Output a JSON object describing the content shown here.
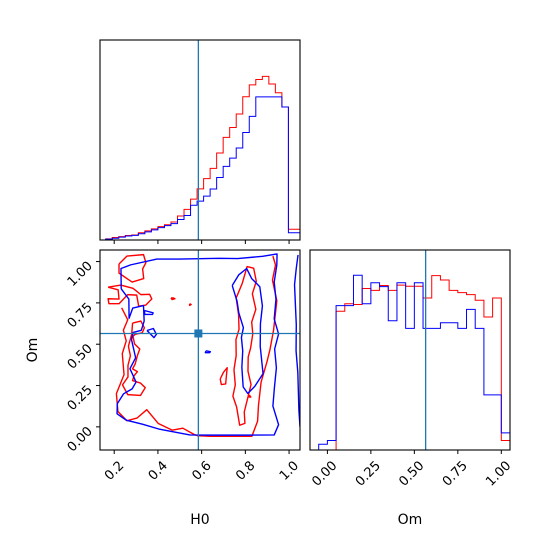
{
  "chart_data": {
    "type": "corner",
    "parameters": [
      "H0",
      "Om"
    ],
    "truth": {
      "H0": 0.585,
      "Om": 0.565
    },
    "colors": {
      "red": "#ff0000",
      "blue": "#0000ff",
      "truth": "#1f77b4"
    },
    "xlim_H0": [
      0.135,
      1.05
    ],
    "ylim_Om": [
      -0.14,
      1.07
    ],
    "hist_xlim_Om": [
      -0.1,
      1.05
    ],
    "H0_ticks": [
      "0.2",
      "0.4",
      "0.6",
      "0.8",
      "1.0"
    ],
    "Om_ticks": [
      "0.00",
      "0.25",
      "0.50",
      "0.75",
      "1.00"
    ],
    "hist_H0": {
      "bin_edges": [
        0.1612,
        0.191,
        0.2209,
        0.2507,
        0.2806,
        0.3104,
        0.3403,
        0.3701,
        0.4,
        0.4299,
        0.4597,
        0.4896,
        0.5194,
        0.5493,
        0.5791,
        0.609,
        0.6388,
        0.6687,
        0.6985,
        0.7284,
        0.7582,
        0.7881,
        0.8179,
        0.8478,
        0.8776,
        0.9075,
        0.9373,
        0.9672,
        0.997,
        1.0269,
        1.0567
      ],
      "series": [
        {
          "color": "red",
          "values": [
            0.006,
            0.014,
            0.019,
            0.025,
            0.028,
            0.04,
            0.051,
            0.062,
            0.074,
            0.085,
            0.1,
            0.133,
            0.17,
            0.227,
            0.284,
            0.341,
            0.398,
            0.483,
            0.57,
            0.625,
            0.7,
            0.796,
            0.862,
            0.892,
            0.909,
            0.867,
            0.818,
            0.739,
            0.06,
            0.06
          ]
        },
        {
          "color": "blue",
          "values": [
            0.005,
            0.01,
            0.016,
            0.022,
            0.026,
            0.035,
            0.045,
            0.056,
            0.069,
            0.08,
            0.091,
            0.114,
            0.136,
            0.193,
            0.216,
            0.244,
            0.283,
            0.347,
            0.409,
            0.455,
            0.511,
            0.597,
            0.687,
            0.795,
            0.795,
            0.795,
            0.795,
            0.739,
            0.04,
            0.04
          ]
        }
      ]
    },
    "hist_Om": {
      "bin_edges": [
        -0.05,
        0.0,
        0.05,
        0.1,
        0.15,
        0.2,
        0.25,
        0.3,
        0.35,
        0.4,
        0.45,
        0.5,
        0.55,
        0.6,
        0.65,
        0.7,
        0.75,
        0.8,
        0.85,
        0.9,
        0.95,
        1.0,
        1.05
      ],
      "series": [
        {
          "color": "red",
          "values": [
            0.0,
            0.0,
            0.73,
            0.77,
            0.766,
            0.85,
            0.84,
            0.866,
            0.84,
            0.868,
            0.862,
            0.862,
            0.8,
            0.918,
            0.895,
            0.84,
            0.828,
            0.818,
            0.788,
            0.7,
            0.8,
            0.05
          ]
        },
        {
          "color": "blue",
          "values": [
            0.03,
            0.05,
            0.76,
            0.76,
            0.92,
            0.77,
            0.88,
            0.86,
            0.68,
            0.88,
            0.64,
            0.88,
            0.64,
            0.64,
            0.67,
            0.67,
            0.64,
            0.74,
            0.64,
            0.29,
            0.29,
            0.09
          ]
        }
      ]
    },
    "contours": [
      {
        "color": "red",
        "points": [
          [
            0.222,
            0.985
          ],
          [
            0.258,
            1.033
          ],
          [
            0.334,
            1.042
          ],
          [
            0.345,
            0.993
          ],
          [
            0.33,
            0.955
          ],
          [
            0.335,
            0.897
          ],
          [
            0.282,
            0.876
          ],
          [
            0.222,
            0.93
          ],
          [
            0.222,
            0.985
          ]
        ]
      },
      {
        "color": "red",
        "points": [
          [
            0.172,
            0.845
          ],
          [
            0.218,
            0.829
          ],
          [
            0.222,
            0.773
          ],
          [
            0.172,
            0.775
          ],
          [
            0.176,
            0.745
          ],
          [
            0.222,
            0.745
          ],
          [
            0.262,
            0.8
          ],
          [
            0.303,
            0.797
          ],
          [
            0.312,
            0.73
          ],
          [
            0.345,
            0.737
          ],
          [
            0.372,
            0.774
          ],
          [
            0.362,
            0.802
          ],
          [
            0.322,
            0.8
          ],
          [
            0.286,
            0.838
          ],
          [
            0.23,
            0.858
          ],
          [
            0.172,
            0.845
          ]
        ]
      },
      {
        "color": "red",
        "points": [
          [
            0.234,
            0.72
          ],
          [
            0.262,
            0.648
          ],
          [
            0.242,
            0.585
          ],
          [
            0.255,
            0.52
          ],
          [
            0.237,
            0.443
          ],
          [
            0.245,
            0.316
          ],
          [
            0.21,
            0.201
          ],
          [
            0.217,
            0.093
          ],
          [
            0.258,
            0.037
          ],
          [
            0.304,
            0.053
          ],
          [
            0.349,
            0.104
          ],
          [
            0.402,
            0.02
          ],
          [
            0.465,
            -0.02
          ],
          [
            0.514,
            -0.008
          ],
          [
            0.564,
            -0.045
          ],
          [
            0.58,
            -0.053
          ],
          [
            0.64,
            -0.057
          ],
          [
            0.72,
            -0.057
          ],
          [
            0.83,
            -0.057
          ],
          [
            0.856,
            0.035
          ],
          [
            0.86,
            0.129
          ],
          [
            0.872,
            0.271
          ],
          [
            0.899,
            0.394
          ],
          [
            0.913,
            0.47
          ],
          [
            0.929,
            0.585
          ],
          [
            0.944,
            0.763
          ],
          [
            0.924,
            0.888
          ],
          [
            0.938,
            0.98
          ],
          [
            0.926,
            1.033
          ]
        ]
      },
      {
        "color": "red",
        "points": [
          [
            0.76,
            0.12
          ],
          [
            0.743,
            0.186
          ],
          [
            0.754,
            0.254
          ],
          [
            0.748,
            0.346
          ],
          [
            0.758,
            0.431
          ],
          [
            0.757,
            0.528
          ],
          [
            0.771,
            0.59
          ],
          [
            0.769,
            0.679
          ],
          [
            0.758,
            0.78
          ],
          [
            0.786,
            0.869
          ],
          [
            0.808,
            0.97
          ],
          [
            0.838,
            0.96
          ],
          [
            0.85,
            0.881
          ],
          [
            0.832,
            0.805
          ],
          [
            0.848,
            0.711
          ],
          [
            0.829,
            0.634
          ],
          [
            0.834,
            0.563
          ],
          [
            0.824,
            0.477
          ],
          [
            0.813,
            0.423
          ],
          [
            0.812,
            0.337
          ],
          [
            0.826,
            0.256
          ],
          [
            0.81,
            0.17
          ],
          [
            0.795,
            0.09
          ],
          [
            0.798,
            0.021
          ],
          [
            0.774,
            0.01
          ],
          [
            0.76,
            0.12
          ]
        ]
      },
      {
        "color": "red",
        "points": [
          [
            0.284,
            0.628
          ],
          [
            0.322,
            0.64
          ],
          [
            0.338,
            0.599
          ],
          [
            0.328,
            0.569
          ],
          [
            0.296,
            0.56
          ],
          [
            0.286,
            0.548
          ],
          [
            0.293,
            0.502
          ],
          [
            0.317,
            0.471
          ],
          [
            0.306,
            0.431
          ],
          [
            0.296,
            0.381
          ],
          [
            0.284,
            0.351
          ],
          [
            0.306,
            0.334
          ],
          [
            0.29,
            0.308
          ],
          [
            0.284,
            0.28
          ],
          [
            0.32,
            0.265
          ],
          [
            0.342,
            0.237
          ],
          [
            0.32,
            0.19
          ],
          [
            0.262,
            0.195
          ],
          [
            0.238,
            0.254
          ],
          [
            0.263,
            0.302
          ],
          [
            0.263,
            0.372
          ],
          [
            0.274,
            0.43
          ],
          [
            0.265,
            0.488
          ],
          [
            0.28,
            0.56
          ],
          [
            0.284,
            0.628
          ]
        ]
      },
      {
        "color": "red",
        "points": [
          [
            0.46,
            0.78
          ],
          [
            0.47,
            0.78
          ],
          [
            0.478,
            0.775
          ],
          [
            0.465,
            0.77
          ],
          [
            0.46,
            0.78
          ]
        ]
      },
      {
        "color": "red",
        "points": [
          [
            0.545,
            0.745
          ],
          [
            0.552,
            0.74
          ],
          [
            0.545,
            0.735
          ],
          [
            0.545,
            0.745
          ]
        ]
      },
      {
        "color": "red",
        "points": [
          [
            0.685,
            0.29
          ],
          [
            0.7,
            0.33
          ],
          [
            0.717,
            0.358
          ],
          [
            0.713,
            0.306
          ],
          [
            0.71,
            0.26
          ],
          [
            0.69,
            0.256
          ],
          [
            0.685,
            0.29
          ]
        ]
      },
      {
        "color": "red",
        "points": [
          [
            0.815,
            0.18
          ],
          [
            0.82,
            0.19
          ],
          [
            0.825,
            0.18
          ],
          [
            0.815,
            0.18
          ]
        ]
      },
      {
        "color": "blue",
        "points": [
          [
            0.232,
            0.835
          ],
          [
            0.231,
            0.958
          ],
          [
            0.275,
            0.98
          ],
          [
            0.395,
            1.015
          ],
          [
            0.5,
            1.015
          ],
          [
            0.68,
            1.02
          ],
          [
            0.765,
            1.018
          ],
          [
            0.879,
            1.032
          ],
          [
            0.945,
            1.046
          ],
          [
            0.944,
            0.98
          ],
          [
            0.932,
            0.876
          ],
          [
            0.94,
            0.772
          ],
          [
            0.932,
            0.653
          ],
          [
            0.952,
            0.562
          ],
          [
            0.934,
            0.471
          ],
          [
            0.942,
            0.357
          ],
          [
            0.933,
            0.238
          ],
          [
            0.926,
            0.126
          ],
          [
            0.952,
            0.013
          ],
          [
            0.932,
            -0.049
          ],
          [
            0.806,
            -0.05
          ],
          [
            0.65,
            -0.05
          ],
          [
            0.546,
            -0.049
          ],
          [
            0.404,
            -0.013
          ],
          [
            0.329,
            0.016
          ],
          [
            0.256,
            0.04
          ],
          [
            0.213,
            0.079
          ],
          [
            0.214,
            0.14
          ],
          [
            0.243,
            0.2
          ],
          [
            0.282,
            0.23
          ],
          [
            0.3,
            0.271
          ],
          [
            0.272,
            0.352
          ],
          [
            0.298,
            0.418
          ],
          [
            0.279,
            0.529
          ],
          [
            0.287,
            0.571
          ],
          [
            0.324,
            0.584
          ],
          [
            0.337,
            0.64
          ],
          [
            0.334,
            0.734
          ],
          [
            0.285,
            0.719
          ],
          [
            0.268,
            0.657
          ],
          [
            0.267,
            0.773
          ],
          [
            0.232,
            0.835
          ]
        ]
      },
      {
        "color": "blue",
        "points": [
          [
            1.041,
            1.04
          ],
          [
            1.033,
            0.96
          ],
          [
            1.025,
            0.86
          ],
          [
            1.03,
            0.708
          ],
          [
            1.033,
            0.618
          ],
          [
            1.032,
            0.46
          ],
          [
            1.04,
            0.33
          ],
          [
            1.045,
            0.1
          ],
          [
            1.05,
            0.0
          ]
        ]
      },
      {
        "color": "blue",
        "points": [
          [
            0.74,
            0.855
          ],
          [
            0.77,
            0.92
          ],
          [
            0.806,
            0.958
          ],
          [
            0.829,
            0.897
          ],
          [
            0.866,
            0.848
          ],
          [
            0.878,
            0.732
          ],
          [
            0.869,
            0.624
          ],
          [
            0.868,
            0.487
          ],
          [
            0.881,
            0.322
          ],
          [
            0.843,
            0.245
          ],
          [
            0.811,
            0.202
          ],
          [
            0.79,
            0.242
          ],
          [
            0.784,
            0.36
          ],
          [
            0.788,
            0.459
          ],
          [
            0.782,
            0.541
          ],
          [
            0.791,
            0.6
          ],
          [
            0.77,
            0.69
          ],
          [
            0.762,
            0.76
          ],
          [
            0.74,
            0.855
          ]
        ]
      },
      {
        "color": "blue",
        "points": [
          [
            0.35,
            0.583
          ],
          [
            0.382,
            0.54
          ],
          [
            0.393,
            0.56
          ],
          [
            0.379,
            0.595
          ],
          [
            0.35,
            0.583
          ]
        ]
      },
      {
        "color": "blue",
        "points": [
          [
            0.338,
            0.704
          ],
          [
            0.378,
            0.69
          ],
          [
            0.375,
            0.68
          ],
          [
            0.34,
            0.68
          ],
          [
            0.338,
            0.704
          ]
        ]
      },
      {
        "color": "blue",
        "points": [
          [
            0.62,
            0.46
          ],
          [
            0.64,
            0.455
          ],
          [
            0.637,
            0.449
          ],
          [
            0.617,
            0.449
          ],
          [
            0.62,
            0.46
          ]
        ]
      }
    ]
  },
  "labels": {
    "x_H0": "H0",
    "y_Om": "Om",
    "x_Om": "Om"
  }
}
